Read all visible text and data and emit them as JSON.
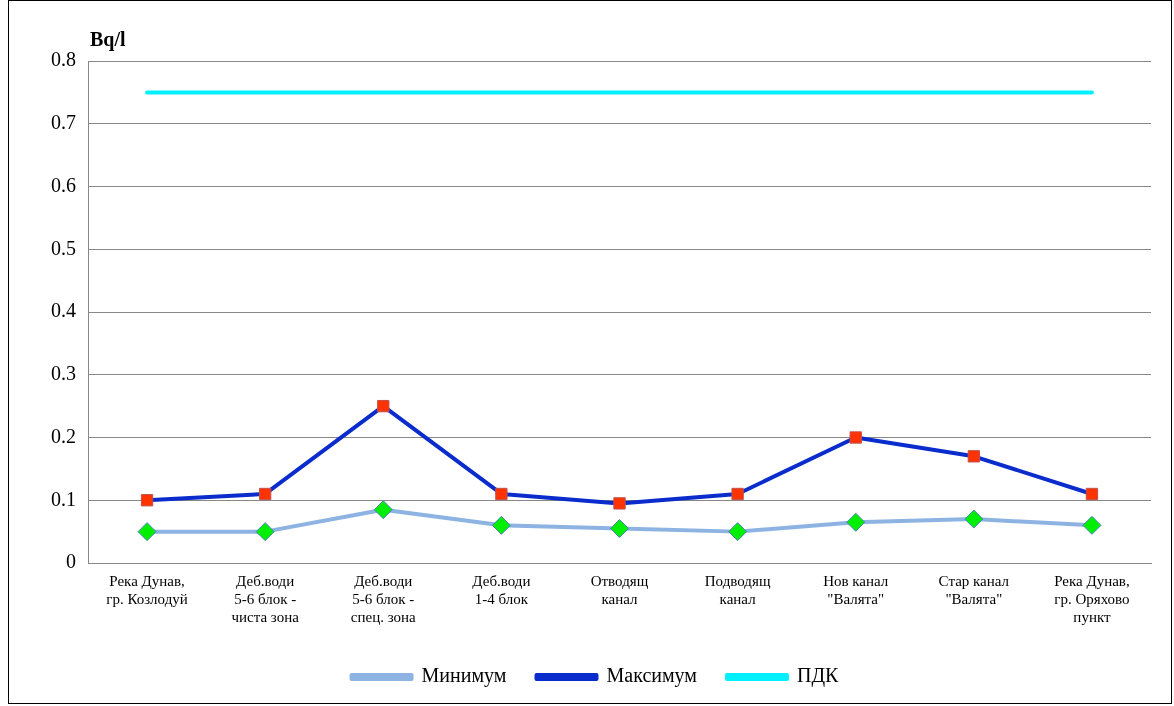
{
  "chart_data": {
    "type": "line",
    "ylabel": "Bq/l",
    "categories": [
      "Река Дунав,\nгр. Козлодуй",
      "Деб.води\n5-6 блок -\nчиста зона",
      "Деб.води\n5-6 блок -\nспец. зона",
      "Деб.води\n1-4 блок",
      "Отводящ\nканал",
      "Подводящ\nканал",
      "Нов канал\n\"Валята\"",
      "Стар канал\n\"Валята\"",
      "Река Дунав,\nгр. Оряхово\nпункт"
    ],
    "series": [
      {
        "name": "Минимум",
        "color": "#8db3e2",
        "marker": "diamond",
        "values": [
          0.05,
          0.05,
          0.085,
          0.06,
          0.055,
          0.05,
          0.065,
          0.07,
          0.06
        ]
      },
      {
        "name": "Максимум",
        "color": "#0a2ccc",
        "marker": "square",
        "values": [
          0.1,
          0.11,
          0.25,
          0.11,
          0.095,
          0.11,
          0.2,
          0.17,
          0.11
        ]
      },
      {
        "name": "ПДК",
        "color": "#00f0ff",
        "marker": "none",
        "values": [
          0.75,
          0.75,
          0.75,
          0.75,
          0.75,
          0.75,
          0.75,
          0.75,
          0.75
        ]
      }
    ],
    "ylim": [
      0,
      0.8
    ],
    "yticks": [
      0,
      0.1,
      0.2,
      0.3,
      0.4,
      0.5,
      0.6,
      0.7,
      0.8
    ],
    "grid": "y",
    "legend": "bottom"
  }
}
